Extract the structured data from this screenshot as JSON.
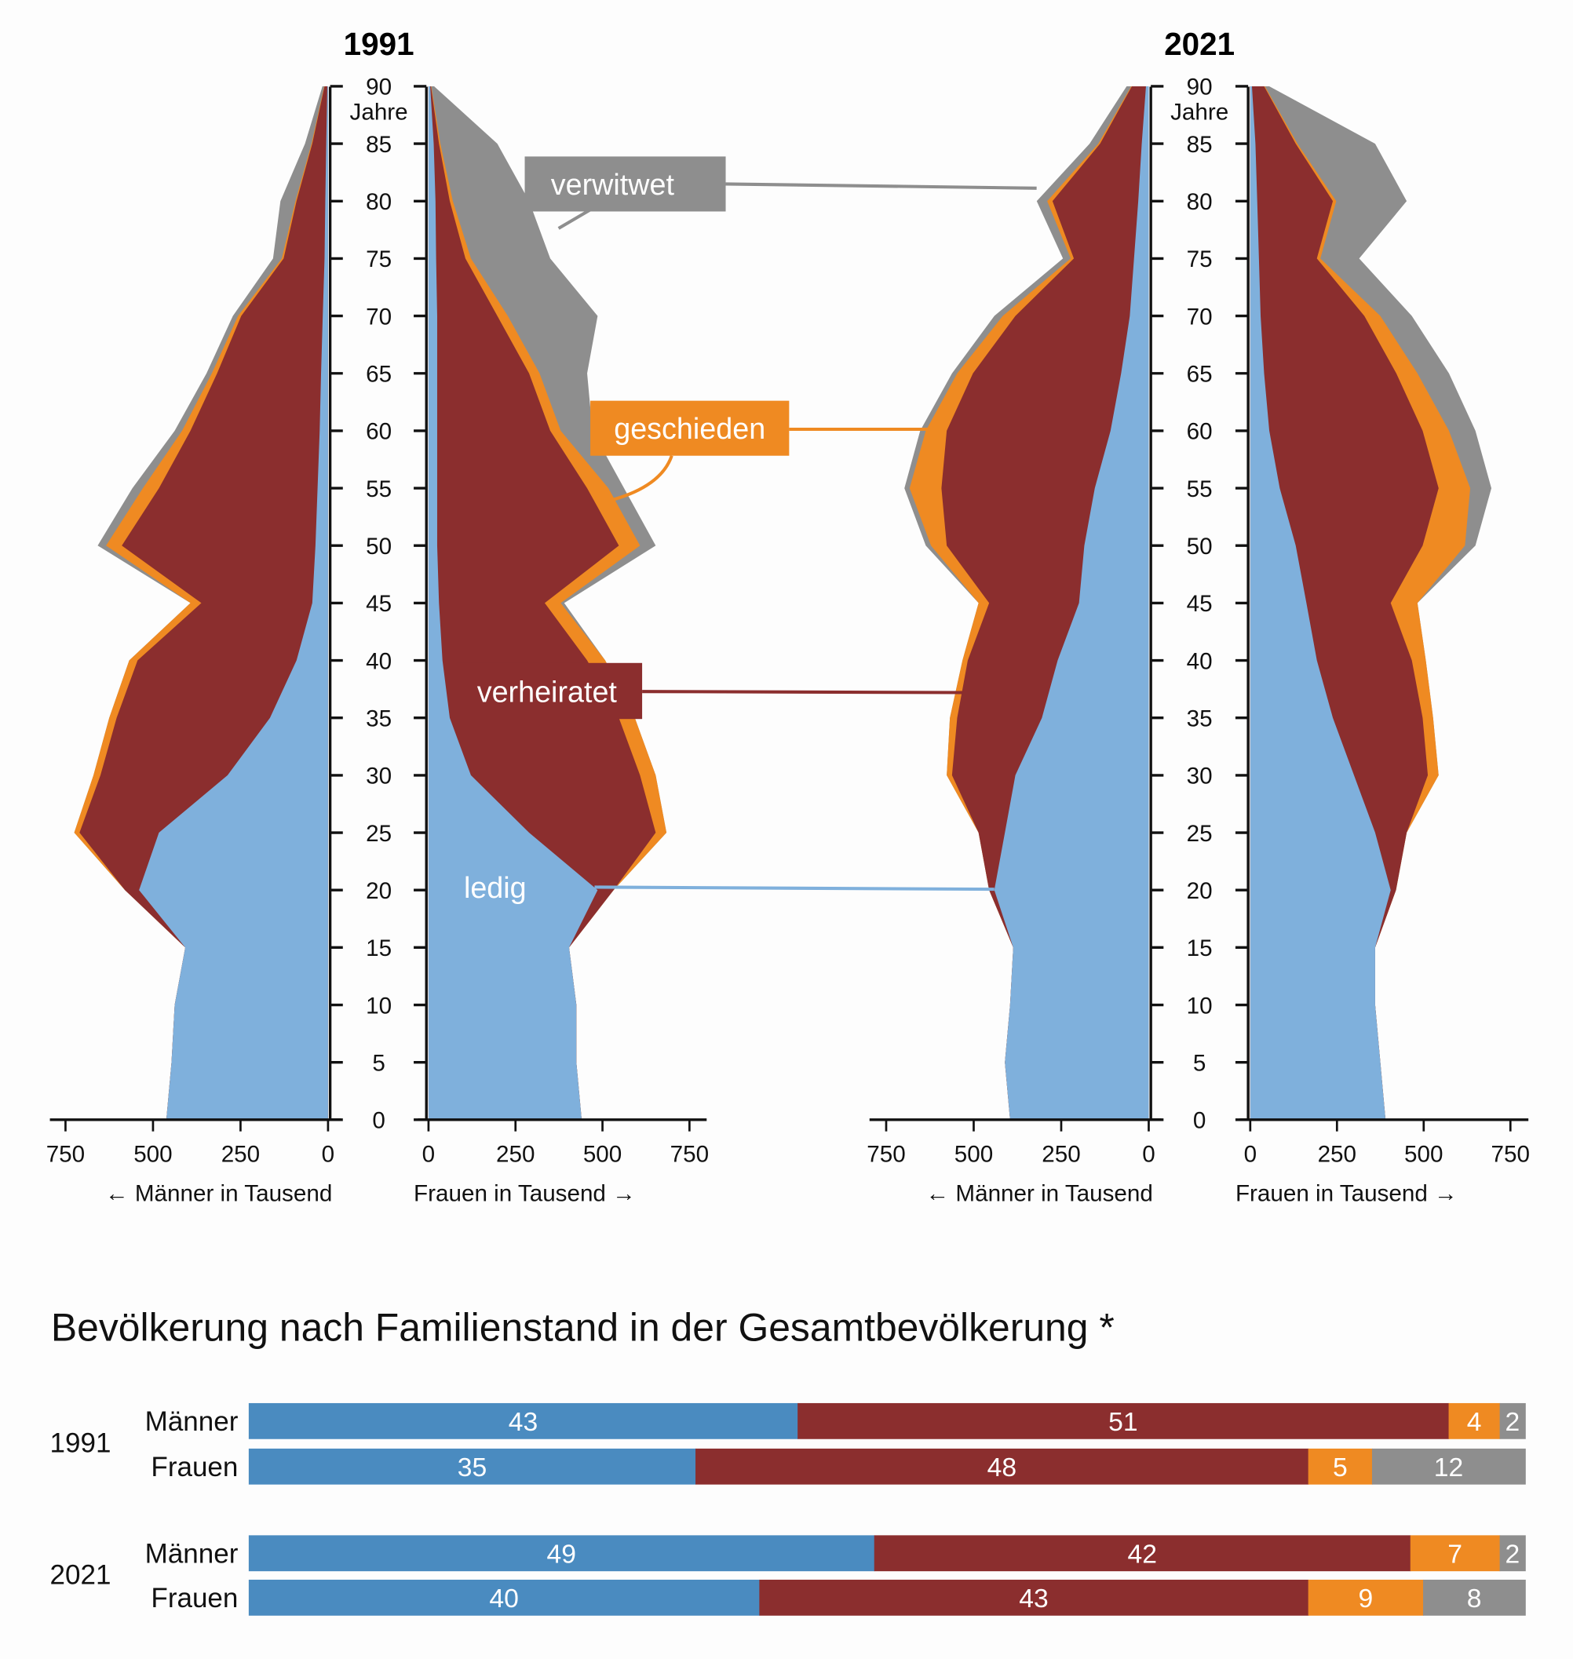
{
  "chart_data": [
    {
      "type": "area",
      "subtype": "population-pyramid",
      "age_axis_label": "Jahre",
      "age_ticks": [
        0,
        5,
        10,
        15,
        20,
        25,
        30,
        35,
        40,
        45,
        50,
        55,
        60,
        65,
        70,
        75,
        80,
        85,
        90
      ],
      "x_ticks": [
        750,
        500,
        250,
        0
      ],
      "x_ticks_right": [
        0,
        250,
        500,
        750
      ],
      "xlim": [
        0,
        750
      ],
      "categories": [
        "ledig",
        "verheiratet",
        "geschieden",
        "verwitwet"
      ],
      "colors": {
        "ledig": "#7fb0dc",
        "verheiratet": "#8b2e2e",
        "geschieden": "#ef8a22",
        "verwitwet": "#8e8e8e"
      },
      "ages": [
        0,
        5,
        10,
        15,
        20,
        25,
        30,
        35,
        40,
        45,
        50,
        55,
        60,
        65,
        70,
        75,
        80,
        85,
        90
      ],
      "panels": [
        {
          "year": "1991",
          "xlabel": "← Männer in Tausend",
          "side": "left",
          "ledig": [
            462,
            447,
            438,
            408,
            540,
            483,
            287,
            166,
            90,
            45,
            36,
            30,
            24,
            20,
            15,
            10,
            8,
            5,
            2
          ],
          "verheiratet": [
            0,
            0,
            0,
            0,
            40,
            227,
            363,
            438,
            454,
            317,
            553,
            453,
            369,
            297,
            233,
            117,
            82,
            40,
            8
          ],
          "geschieden": [
            0,
            0,
            0,
            0,
            0,
            15,
            20,
            21,
            24,
            31,
            45,
            46,
            24,
            15,
            9,
            5,
            3,
            2,
            1
          ],
          "verwitwet": [
            0,
            0,
            0,
            0,
            0,
            0,
            0,
            0,
            0,
            0,
            24,
            30,
            21,
            15,
            15,
            25,
            43,
            19,
            5
          ]
        },
        {
          "year": "1991",
          "xlabel": "Frauen in Tausend →",
          "side": "right",
          "ledig": [
            440,
            425,
            425,
            404,
            486,
            289,
            122,
            61,
            40,
            30,
            25,
            25,
            25,
            25,
            25,
            22,
            20,
            15,
            5
          ],
          "verheiratet": [
            0,
            0,
            0,
            0,
            46,
            364,
            486,
            486,
            416,
            304,
            522,
            431,
            325,
            264,
            173,
            84,
            41,
            15,
            2
          ],
          "geschieden": [
            0,
            0,
            0,
            0,
            0,
            31,
            45,
            46,
            52,
            46,
            61,
            61,
            30,
            30,
            30,
            16,
            9,
            4,
            1
          ],
          "verwitwet": [
            0,
            0,
            0,
            0,
            0,
            0,
            0,
            0,
            0,
            10,
            45,
            45,
            91,
            137,
            258,
            228,
            219,
            164,
            8
          ]
        },
        {
          "year": "2021",
          "xlabel": "← Männer in Tausend",
          "side": "left",
          "ledig": [
            396,
            411,
            396,
            387,
            441,
            411,
            381,
            305,
            260,
            199,
            184,
            154,
            109,
            79,
            54,
            42,
            30,
            20,
            8
          ],
          "verheiratet": [
            0,
            0,
            0,
            0,
            15,
            75,
            181,
            242,
            257,
            257,
            393,
            438,
            468,
            423,
            327,
            172,
            245,
            119,
            40
          ],
          "geschieden": [
            0,
            0,
            0,
            0,
            0,
            0,
            15,
            21,
            15,
            30,
            45,
            91,
            60,
            45,
            36,
            9,
            15,
            5,
            2
          ],
          "verwitwet": [
            0,
            0,
            0,
            0,
            0,
            0,
            0,
            0,
            0,
            0,
            15,
            15,
            16,
            15,
            24,
            22,
            30,
            25,
            13
          ]
        },
        {
          "year": "2021",
          "xlabel": "Frauen in Tausend →",
          "side": "right",
          "ledig": [
            390,
            375,
            360,
            360,
            405,
            360,
            299,
            238,
            192,
            162,
            131,
            85,
            55,
            40,
            30,
            25,
            20,
            15,
            5
          ],
          "verheiratet": [
            0,
            0,
            0,
            0,
            15,
            91,
            213,
            259,
            274,
            243,
            366,
            458,
            442,
            381,
            299,
            167,
            218,
            116,
            35
          ],
          "geschieden": [
            0,
            0,
            0,
            0,
            0,
            0,
            31,
            30,
            40,
            77,
            122,
            91,
            76,
            61,
            46,
            10,
            10,
            5,
            2
          ],
          "verwitwet": [
            0,
            0,
            0,
            0,
            0,
            0,
            0,
            0,
            0,
            0,
            30,
            61,
            76,
            91,
            91,
            112,
            203,
            224,
            13
          ]
        }
      ],
      "callouts": {
        "verwitwet": "verwitwet",
        "geschieden": "geschieden",
        "verheiratet": "verheiratet",
        "ledig": "ledig"
      }
    },
    {
      "type": "bar",
      "subtype": "stacked-horizontal-percent",
      "title": "Bevölkerung nach Familienstand in der Gesamtbevölkerung *",
      "groups": [
        {
          "year": "1991",
          "rows": [
            {
              "label": "Männer",
              "values": [
                43,
                51,
                4,
                2
              ]
            },
            {
              "label": "Frauen",
              "values": [
                35,
                48,
                5,
                12
              ]
            }
          ]
        },
        {
          "year": "2021",
          "rows": [
            {
              "label": "Männer",
              "values": [
                49,
                42,
                7,
                2
              ]
            },
            {
              "label": "Frauen",
              "values": [
                40,
                43,
                9,
                8
              ]
            }
          ]
        }
      ],
      "series_colors": [
        "#4a8bc0",
        "#8b2e2e",
        "#ef8a22",
        "#8e8e8e"
      ]
    }
  ]
}
